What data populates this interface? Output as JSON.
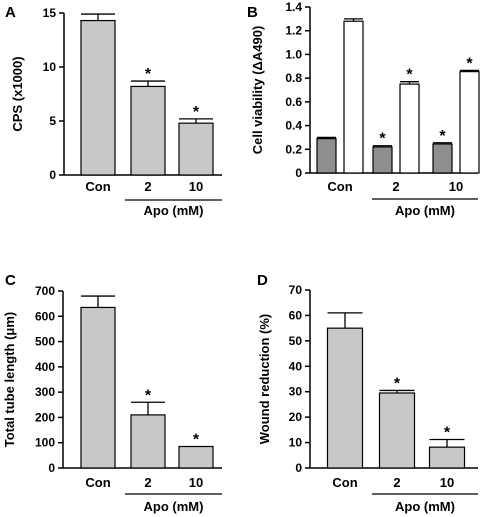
{
  "colors": {
    "gray": "#c8c8c8",
    "dark_gray": "#8f8f8f",
    "white": "#ffffff",
    "axis": "#000000"
  },
  "chart_data": [
    {
      "panel": "A",
      "type": "bar",
      "categories": [
        "Con",
        "2",
        "10"
      ],
      "series": [
        {
          "values": [
            14.3,
            8.2,
            4.8
          ],
          "errors": [
            0.6,
            0.5,
            0.4
          ],
          "significant": [
            false,
            true,
            true
          ]
        }
      ],
      "ylabel": "CPS (x1000)",
      "ylim": [
        0,
        15
      ],
      "yticks": [
        0,
        5,
        10,
        15
      ],
      "group_label": "Apo (mM)",
      "group_categories": [
        "2",
        "10"
      ]
    },
    {
      "panel": "B",
      "type": "bar",
      "categories": [
        "Con",
        "2",
        "10"
      ],
      "series": [
        {
          "values": [
            0.29,
            0.22,
            0.245
          ],
          "errors": [
            0.01,
            0.01,
            0.01
          ],
          "significant": [
            false,
            true,
            true
          ],
          "color": "#8f8f8f"
        },
        {
          "values": [
            1.28,
            0.75,
            0.855
          ],
          "errors": [
            0.02,
            0.02,
            0.01
          ],
          "significant": [
            false,
            true,
            true
          ],
          "color": "#ffffff"
        }
      ],
      "ylabel": "Cell viability (ΔA490)",
      "ylim": [
        0,
        1.4
      ],
      "yticks": [
        0,
        0.2,
        0.4,
        0.6,
        0.8,
        1.0,
        1.2,
        1.4
      ],
      "ytick_labels": [
        "0",
        "0.2",
        "0.4",
        "0.6",
        "0.8",
        "1.0",
        "1.2",
        "1.4"
      ],
      "group_label": "Apo (mM)",
      "group_categories": [
        "2",
        "10"
      ]
    },
    {
      "panel": "C",
      "type": "bar",
      "categories": [
        "Con",
        "2",
        "10"
      ],
      "series": [
        {
          "values": [
            635,
            210,
            85
          ],
          "errors": [
            45,
            50,
            0
          ],
          "significant": [
            false,
            true,
            true
          ]
        }
      ],
      "ylabel": "Total tube length (μm)",
      "ylim": [
        0,
        700
      ],
      "yticks": [
        0,
        100,
        200,
        300,
        400,
        500,
        600,
        700
      ],
      "group_label": "Apo (mM)",
      "group_categories": [
        "2",
        "10"
      ]
    },
    {
      "panel": "D",
      "type": "bar",
      "categories": [
        "Con",
        "2",
        "10"
      ],
      "series": [
        {
          "values": [
            55,
            29.5,
            8.2
          ],
          "errors": [
            6,
            1,
            3
          ],
          "significant": [
            false,
            true,
            true
          ]
        }
      ],
      "ylabel": "Wound reduction (%)",
      "ylim": [
        0,
        70
      ],
      "yticks": [
        0,
        10,
        20,
        30,
        40,
        50,
        60,
        70
      ],
      "group_label": "Apo (mM)",
      "group_categories": [
        "2",
        "10"
      ]
    }
  ]
}
